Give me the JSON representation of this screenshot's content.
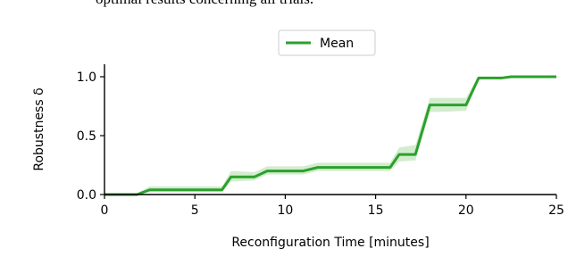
{
  "text_above": "optimal results concerning all trials.",
  "chart_data": {
    "type": "line",
    "x_label": "Reconfiguration Time [minutes]",
    "y_label": "Robustness δ",
    "x": [
      0,
      1.8,
      2.5,
      6.5,
      7.0,
      8.3,
      9.0,
      11.0,
      11.8,
      15.8,
      16.3,
      17.2,
      18.0,
      20.0,
      20.7,
      22.0,
      22.5,
      25
    ],
    "series": [
      {
        "name": "Mean",
        "color": "#2ca02c",
        "values": [
          0,
          0,
          0.04,
          0.04,
          0.15,
          0.15,
          0.2,
          0.2,
          0.23,
          0.23,
          0.34,
          0.34,
          0.76,
          0.76,
          0.99,
          0.99,
          1.0,
          1.0
        ]
      }
    ],
    "band": {
      "color": "#c7e9c0",
      "lower": [
        0,
        0,
        0.02,
        0.02,
        0.11,
        0.12,
        0.17,
        0.17,
        0.2,
        0.2,
        0.28,
        0.29,
        0.7,
        0.71,
        0.98,
        0.98,
        1.0,
        1.0
      ],
      "upper": [
        0,
        0.01,
        0.07,
        0.07,
        0.2,
        0.19,
        0.24,
        0.24,
        0.27,
        0.27,
        0.4,
        0.42,
        0.82,
        0.82,
        1.0,
        1.0,
        1.0,
        1.0
      ]
    },
    "xlim": [
      0,
      25
    ],
    "ylim": [
      0,
      1.106
    ],
    "xticks": [
      0,
      5,
      10,
      15,
      20,
      25
    ],
    "yticks": [
      {
        "value": 0,
        "label": "0.0"
      },
      0.5,
      {
        "value": 1,
        "label": "1.0"
      }
    ],
    "legend": "upper center"
  }
}
